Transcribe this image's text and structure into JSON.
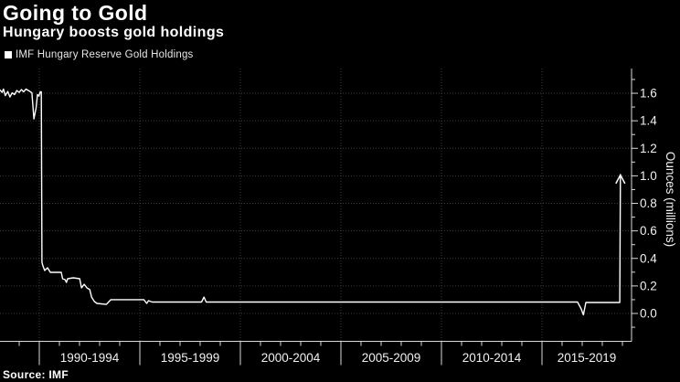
{
  "header": {
    "title": "Going to Gold",
    "subtitle": "Hungary boosts gold holdings"
  },
  "legend": {
    "label": "IMF Hungary Reserve Gold Holdings",
    "swatch_color": "#ffffff"
  },
  "source": {
    "text": "Source: IMF"
  },
  "colors": {
    "background": "#000000",
    "line": "#ffffff",
    "grid": "#3d3d3d",
    "axis": "#d9d9d9",
    "tick_text": "#f0f0f0"
  },
  "chart_data": {
    "type": "line",
    "title": "Going to Gold",
    "subtitle": "Hungary boosts gold holdings",
    "legend_entries": [
      "IMF Hungary Reserve Gold Holdings"
    ],
    "legend_position": "top-left",
    "ylabel": "Ounces (millions)",
    "ylabel_side": "right",
    "ylim": [
      -0.2,
      1.78
    ],
    "y_ticks": [
      0.0,
      0.2,
      0.4,
      0.6,
      0.8,
      1.0,
      1.2,
      1.4,
      1.6
    ],
    "y_tick_labels": [
      "0.0",
      "0.2",
      "0.4",
      "0.6",
      "0.8",
      "1.0",
      "1.2",
      "1.4",
      "1.6"
    ],
    "y_minor_step": 0.1,
    "x_categories": [
      "1990-1994",
      "1995-1999",
      "2000-2004",
      "2005-2009",
      "2010-2014",
      "2015-2019"
    ],
    "x_boundary_years": [
      1990,
      1995,
      2000,
      2005,
      2010,
      2015
    ],
    "x_range_years": [
      1988.05,
      2019.6
    ],
    "grid": "dotted",
    "annotations": [
      {
        "type": "arrow-up",
        "year": 2018.9,
        "value_from": 0.08,
        "value_to": 1.0
      }
    ],
    "series": [
      {
        "name": "IMF Hungary Reserve Gold Holdings",
        "color": "#ffffff",
        "points": [
          [
            1988.05,
            1.623
          ],
          [
            1988.15,
            1.606
          ],
          [
            1988.22,
            1.63
          ],
          [
            1988.31,
            1.583
          ],
          [
            1988.43,
            1.613
          ],
          [
            1988.54,
            1.573
          ],
          [
            1988.65,
            1.603
          ],
          [
            1988.77,
            1.59
          ],
          [
            1988.88,
            1.62
          ],
          [
            1989.0,
            1.606
          ],
          [
            1989.11,
            1.627
          ],
          [
            1989.22,
            1.61
          ],
          [
            1989.34,
            1.63
          ],
          [
            1989.5,
            1.616
          ],
          [
            1989.63,
            1.603
          ],
          [
            1989.73,
            1.414
          ],
          [
            1989.84,
            1.494
          ],
          [
            1989.91,
            1.59
          ],
          [
            1989.98,
            1.58
          ],
          [
            1990.05,
            1.61
          ],
          [
            1990.1,
            1.61
          ],
          [
            1990.13,
            0.372
          ],
          [
            1990.18,
            0.345
          ],
          [
            1990.27,
            0.312
          ],
          [
            1990.41,
            0.332
          ],
          [
            1990.55,
            0.299
          ],
          [
            1991.09,
            0.299
          ],
          [
            1991.16,
            0.252
          ],
          [
            1991.28,
            0.246
          ],
          [
            1991.35,
            0.226
          ],
          [
            1991.41,
            0.252
          ],
          [
            1991.69,
            0.259
          ],
          [
            1992.01,
            0.252
          ],
          [
            1992.1,
            0.186
          ],
          [
            1992.23,
            0.212
          ],
          [
            1992.37,
            0.186
          ],
          [
            1992.51,
            0.173
          ],
          [
            1992.6,
            0.119
          ],
          [
            1992.74,
            0.086
          ],
          [
            1992.87,
            0.073
          ],
          [
            1993.33,
            0.066
          ],
          [
            1993.56,
            0.1
          ],
          [
            1995.2,
            0.1
          ],
          [
            1995.34,
            0.073
          ],
          [
            1995.43,
            0.093
          ],
          [
            1995.61,
            0.083
          ],
          [
            1998.07,
            0.083
          ],
          [
            1998.19,
            0.119
          ],
          [
            1998.3,
            0.083
          ],
          [
            2016.77,
            0.083
          ],
          [
            2016.95,
            0.033
          ],
          [
            2017.06,
            -0.01
          ],
          [
            2017.18,
            0.08
          ],
          [
            2018.87,
            0.08
          ],
          [
            2018.9,
            0.996
          ]
        ]
      }
    ]
  }
}
